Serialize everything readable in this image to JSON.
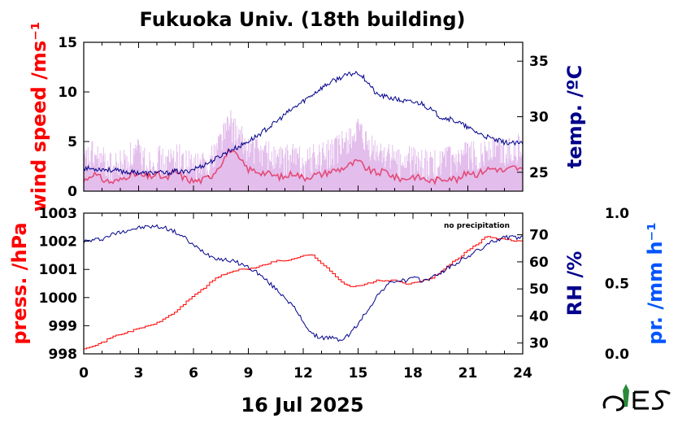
{
  "chart_data": {
    "title": "Fukuoka Univ. (18th building)",
    "date_label": "16 Jul 2025",
    "x_ticks": [
      0,
      3,
      6,
      9,
      12,
      15,
      18,
      21,
      24
    ],
    "xlim": [
      0,
      24
    ],
    "panels": [
      {
        "type": "line",
        "left_axis": {
          "label": "wind speed /ms⁻¹",
          "ylim": [
            0,
            15
          ],
          "ticks": [
            0,
            5,
            10,
            15
          ],
          "color": "#ff0000"
        },
        "right_axis": {
          "label": "temp. /ºC",
          "ylim": [
            23.3,
            36.7
          ],
          "ticks": [
            25,
            30,
            35
          ],
          "color": "#00008b"
        },
        "series": [
          {
            "axis": "left",
            "color": "#ff0000",
            "style": "mean",
            "x": [
              0,
              0.5,
              1,
              1.5,
              2,
              2.5,
              3,
              3.5,
              4,
              4.5,
              5,
              5.5,
              6,
              6.5,
              7,
              7.5,
              8,
              8.5,
              9,
              9.5,
              10,
              10.5,
              11,
              11.5,
              12,
              12.5,
              13,
              13.5,
              14,
              14.5,
              15,
              15.5,
              16,
              16.5,
              17,
              17.5,
              18,
              18.5,
              19,
              19.5,
              20,
              20.5,
              21,
              21.5,
              22,
              22.5,
              23,
              23.5,
              24
            ],
            "values": [
              1.0,
              1.8,
              1.2,
              0.9,
              1.1,
              1.7,
              1.6,
              1.4,
              1.7,
              1.2,
              2.0,
              1.3,
              1.0,
              1.1,
              1.6,
              2.8,
              4.2,
              3.2,
              2.2,
              2.0,
              1.8,
              1.5,
              1.4,
              1.9,
              1.3,
              1.6,
              1.7,
              2.0,
              2.2,
              2.6,
              3.0,
              2.2,
              1.8,
              2.0,
              1.4,
              1.2,
              1.5,
              1.3,
              1.0,
              1.2,
              1.4,
              1.1,
              2.0,
              1.7,
              2.2,
              2.3,
              2.0,
              2.4,
              2.1
            ]
          },
          {
            "axis": "left",
            "color": "#cc88dd",
            "style": "gust",
            "x": [
              0,
              0.5,
              1,
              1.5,
              2,
              2.5,
              3,
              3.5,
              4,
              4.5,
              5,
              5.5,
              6,
              6.5,
              7,
              7.5,
              8,
              8.5,
              9,
              9.5,
              10,
              10.5,
              11,
              11.5,
              12,
              12.5,
              13,
              13.5,
              14,
              14.5,
              15,
              15.5,
              16,
              16.5,
              17,
              17.5,
              18,
              18.5,
              19,
              19.5,
              20,
              20.5,
              21,
              21.5,
              22,
              22.5,
              23,
              23.5,
              24
            ],
            "values": [
              2.8,
              3.6,
              3.0,
              2.4,
              2.6,
              3.4,
              3.8,
              2.8,
              3.2,
              2.6,
              3.6,
              2.8,
              2.4,
              2.6,
              3.2,
              5.5,
              6.8,
              5.2,
              4.4,
              4.2,
              3.8,
              3.2,
              3.0,
              3.6,
              2.8,
              3.2,
              3.4,
              3.8,
              4.2,
              5.5,
              5.8,
              4.4,
              3.8,
              3.9,
              3.0,
              2.8,
              3.2,
              2.8,
              2.4,
              2.8,
              3.0,
              2.6,
              3.8,
              3.4,
              4.2,
              4.4,
              3.8,
              4.6,
              4.0
            ]
          },
          {
            "axis": "right",
            "color": "#00008b",
            "style": "temperature",
            "x": [
              0,
              0.5,
              1,
              1.5,
              2,
              2.5,
              3,
              3.5,
              4,
              4.5,
              5,
              5.5,
              6,
              6.5,
              7,
              7.5,
              8,
              8.5,
              9,
              9.5,
              10,
              10.5,
              11,
              11.5,
              12,
              12.5,
              13,
              13.5,
              14,
              14.5,
              15,
              15.5,
              16,
              16.5,
              17,
              17.5,
              18,
              18.5,
              19,
              19.5,
              20,
              20.5,
              21,
              21.5,
              22,
              22.5,
              23,
              23.5,
              24
            ],
            "values": [
              25.4,
              25.3,
              25.3,
              25.2,
              25.1,
              25.0,
              25.0,
              24.9,
              25.0,
              24.9,
              25.1,
              25.0,
              25.3,
              25.6,
              26.0,
              26.5,
              27.0,
              27.3,
              27.8,
              28.3,
              28.9,
              29.5,
              30.2,
              30.8,
              31.4,
              32.0,
              32.6,
              33.1,
              33.5,
              33.8,
              34.0,
              33.2,
              32.0,
              31.8,
              31.6,
              31.4,
              31.3,
              31.2,
              30.6,
              30.0,
              29.8,
              29.5,
              29.0,
              28.6,
              28.2,
              27.9,
              27.7,
              27.6,
              27.6
            ]
          }
        ]
      },
      {
        "type": "line",
        "annotation": "no precipitation",
        "left_axis": {
          "label": "press. /hPa",
          "ylim": [
            998,
            1003
          ],
          "ticks": [
            998,
            999,
            1000,
            1001,
            1002,
            1003
          ],
          "color": "#ff0000"
        },
        "right_axis": {
          "label": "RH /%",
          "ylim": [
            26,
            78
          ],
          "ticks": [
            30,
            40,
            50,
            60,
            70
          ],
          "color": "#00008b"
        },
        "far_right_axis": {
          "label": "pr. /mm h⁻¹",
          "ylim": [
            0,
            1
          ],
          "ticks": [
            "0.0",
            "0.5",
            "1.0"
          ],
          "color": "#0055ff"
        },
        "series": [
          {
            "axis": "left",
            "color": "#ff0000",
            "style": "pressure",
            "x": [
              0,
              0.5,
              1,
              1.5,
              2,
              2.5,
              3,
              3.5,
              4,
              4.5,
              5,
              5.5,
              6,
              6.5,
              7,
              7.5,
              8,
              8.5,
              9,
              9.5,
              10,
              10.5,
              11,
              11.5,
              12,
              12.5,
              13,
              13.5,
              14,
              14.5,
              15,
              15.5,
              16,
              16.5,
              17,
              17.5,
              18,
              18.5,
              19,
              19.5,
              20,
              20.5,
              21,
              21.5,
              22,
              22.5,
              23,
              23.5,
              24
            ],
            "values": [
              998.2,
              998.3,
              998.4,
              998.6,
              998.7,
              998.8,
              998.9,
              999.0,
              999.1,
              999.3,
              999.5,
              999.8,
              1000.1,
              1000.3,
              1000.6,
              1000.8,
              1000.9,
              1001.0,
              1001.0,
              1001.1,
              1001.2,
              1001.3,
              1001.3,
              1001.4,
              1001.5,
              1001.5,
              1001.2,
              1000.9,
              1000.6,
              1000.4,
              1000.4,
              1000.5,
              1000.6,
              1000.6,
              1000.6,
              1000.5,
              1000.5,
              1000.6,
              1000.7,
              1000.9,
              1001.2,
              1001.4,
              1001.7,
              1001.9,
              1002.2,
              1002.1,
              1002.1,
              1002.0,
              1002.0
            ]
          },
          {
            "axis": "right",
            "color": "#00008b",
            "style": "humidity",
            "x": [
              0,
              0.5,
              1,
              1.5,
              2,
              2.5,
              3,
              3.5,
              4,
              4.5,
              5,
              5.5,
              6,
              6.5,
              7,
              7.5,
              8,
              8.5,
              9,
              9.5,
              10,
              10.5,
              11,
              11.5,
              12,
              12.5,
              13,
              13.5,
              14,
              14.5,
              15,
              15.5,
              16,
              16.5,
              17,
              17.5,
              18,
              18.5,
              19,
              19.5,
              20,
              20.5,
              21,
              21.5,
              22,
              22.5,
              23,
              23.5,
              24
            ],
            "values": [
              67.5,
              68,
              68.5,
              70,
              71,
              72,
              72.5,
              73,
              73,
              72.5,
              71,
              69,
              66,
              64,
              62,
              61,
              60.5,
              59.5,
              58,
              56,
              53,
              50,
              47,
              43,
              38,
              33,
              32,
              32,
              31,
              33,
              37,
              42,
              47,
              51,
              53,
              53,
              54,
              53,
              54,
              56,
              58,
              60,
              62,
              64,
              66,
              68,
              69,
              69,
              69
            ]
          }
        ]
      }
    ]
  }
}
